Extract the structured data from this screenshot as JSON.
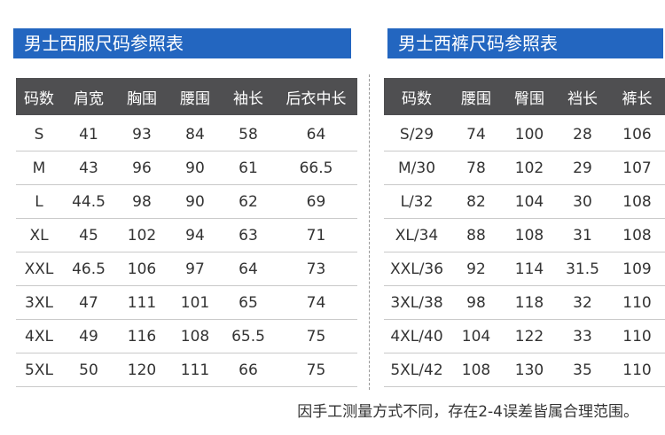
{
  "left": {
    "title": "男士西服尺码参照表",
    "header": [
      "码数",
      "肩宽",
      "胸围",
      "腰围",
      "袖长",
      "后衣中长"
    ],
    "rows": [
      [
        "S",
        "41",
        "93",
        "84",
        "58",
        "64"
      ],
      [
        "M",
        "43",
        "96",
        "90",
        "61",
        "66.5"
      ],
      [
        "L",
        "44.5",
        "98",
        "90",
        "62",
        "69"
      ],
      [
        "XL",
        "45",
        "102",
        "94",
        "63",
        "71"
      ],
      [
        "XXL",
        "46.5",
        "106",
        "97",
        "64",
        "73"
      ],
      [
        "3XL",
        "47",
        "111",
        "101",
        "65",
        "74"
      ],
      [
        "4XL",
        "49",
        "116",
        "108",
        "65.5",
        "75"
      ],
      [
        "5XL",
        "50",
        "120",
        "111",
        "66",
        "75"
      ]
    ]
  },
  "right": {
    "title": "男士西裤尺码参照表",
    "header": [
      "码数",
      "腰围",
      "臀围",
      "裆长",
      "裤长"
    ],
    "rows": [
      [
        "S/29",
        "74",
        "100",
        "28",
        "106"
      ],
      [
        "M/30",
        "78",
        "102",
        "29",
        "107"
      ],
      [
        "L/32",
        "82",
        "104",
        "30",
        "108"
      ],
      [
        "XL/34",
        "88",
        "108",
        "31",
        "108"
      ],
      [
        "XXL/36",
        "92",
        "114",
        "31.5",
        "109"
      ],
      [
        "3XL/38",
        "98",
        "118",
        "32",
        "110"
      ],
      [
        "4XL/40",
        "104",
        "122",
        "33",
        "110"
      ],
      [
        "5XL/42",
        "108",
        "130",
        "35",
        "110"
      ]
    ]
  },
  "note": "因手工测量方式不同，存在2-4误差皆属合理范围。"
}
